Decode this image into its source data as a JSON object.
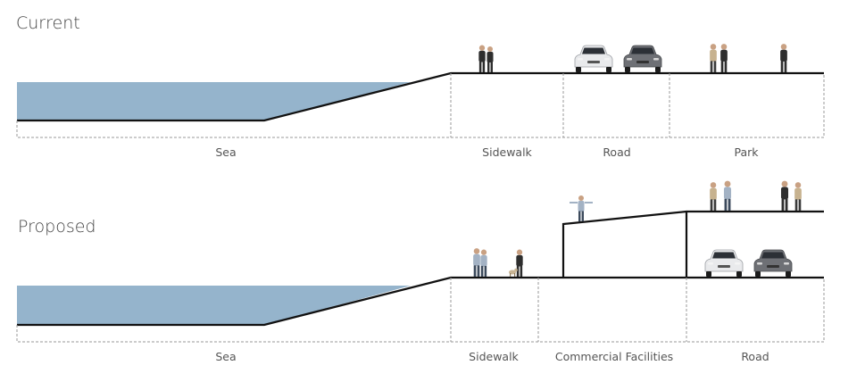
{
  "current": {
    "title": "Current",
    "zones": [
      {
        "key": "sea",
        "label": "Sea"
      },
      {
        "key": "sidewalk",
        "label": "Sidewalk"
      },
      {
        "key": "road",
        "label": "Road"
      },
      {
        "key": "park",
        "label": "Park"
      }
    ]
  },
  "proposed": {
    "title": "Proposed",
    "zones": [
      {
        "key": "sea",
        "label": "Sea"
      },
      {
        "key": "sidewalk",
        "label": "Sidewalk"
      },
      {
        "key": "commercial",
        "label": "Commercial Facilities"
      },
      {
        "key": "road",
        "label": "Road"
      }
    ]
  },
  "colors": {
    "water": "#95b4cc",
    "ground_line": "#111111",
    "dashed_outline": "#9a9a9a",
    "label_text": "#555555"
  },
  "icons": [
    "pedestrian-figure-icon",
    "car-icon"
  ]
}
